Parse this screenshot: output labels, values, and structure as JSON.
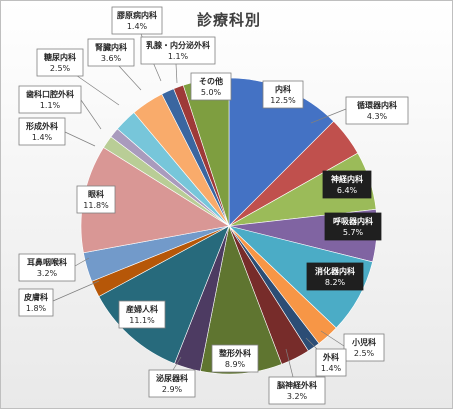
{
  "chart_data": {
    "type": "pie",
    "title": "診療科別",
    "slices": [
      {
        "name": "内科",
        "label": "12.5%",
        "value": 12.5,
        "color": "#4472c4"
      },
      {
        "name": "循環器内科",
        "label": "4.3%",
        "value": 4.3,
        "color": "#c0504d"
      },
      {
        "name": "神経内科",
        "label": "6.4%",
        "value": 6.4,
        "color": "#9bbb59"
      },
      {
        "name": "呼吸器内科",
        "label": "5.7%",
        "value": 5.7,
        "color": "#8064a2"
      },
      {
        "name": "消化器内科",
        "label": "8.2%",
        "value": 8.2,
        "color": "#4bacc6"
      },
      {
        "name": "小児科",
        "label": "2.5%",
        "value": 2.5,
        "color": "#f79646"
      },
      {
        "name": "外科",
        "label": "1.4%",
        "value": 1.4,
        "color": "#2c4d75"
      },
      {
        "name": "脳神経外科",
        "label": "3.2%",
        "value": 3.2,
        "color": "#772c2a"
      },
      {
        "name": "整形外科",
        "label": "8.9%",
        "value": 8.9,
        "color": "#5f7530"
      },
      {
        "name": "泌尿器科",
        "label": "2.9%",
        "value": 2.9,
        "color": "#4d3b62"
      },
      {
        "name": "産婦人科",
        "label": "11.1%",
        "value": 11.1,
        "color": "#276a7c"
      },
      {
        "name": "皮膚科",
        "label": "1.8%",
        "value": 1.8,
        "color": "#b65708"
      },
      {
        "name": "耳鼻咽喉科",
        "label": "3.2%",
        "value": 3.2,
        "color": "#729aca"
      },
      {
        "name": "眼科",
        "label": "11.8%",
        "value": 11.8,
        "color": "#d99795"
      },
      {
        "name": "形成外科",
        "label": "1.4%",
        "value": 1.4,
        "color": "#b9cd96"
      },
      {
        "name": "歯科口腔外科",
        "label": "1.1%",
        "value": 1.1,
        "color": "#a99bbd"
      },
      {
        "name": "糖尿内科",
        "label": "2.5%",
        "value": 2.5,
        "color": "#77c6da"
      },
      {
        "name": "腎臓内科",
        "label": "3.6%",
        "value": 3.6,
        "color": "#f9ab6b"
      },
      {
        "name": "膠原病内科",
        "label": "1.4%",
        "value": 1.4,
        "color": "#3a66a0"
      },
      {
        "name": "乳腺・内分泌外科",
        "label": "1.1%",
        "value": 1.1,
        "color": "#9e3a38"
      },
      {
        "name": "その他",
        "label": "5.0%",
        "value": 5.0,
        "color": "#7e9e40"
      }
    ],
    "legend": "none"
  }
}
